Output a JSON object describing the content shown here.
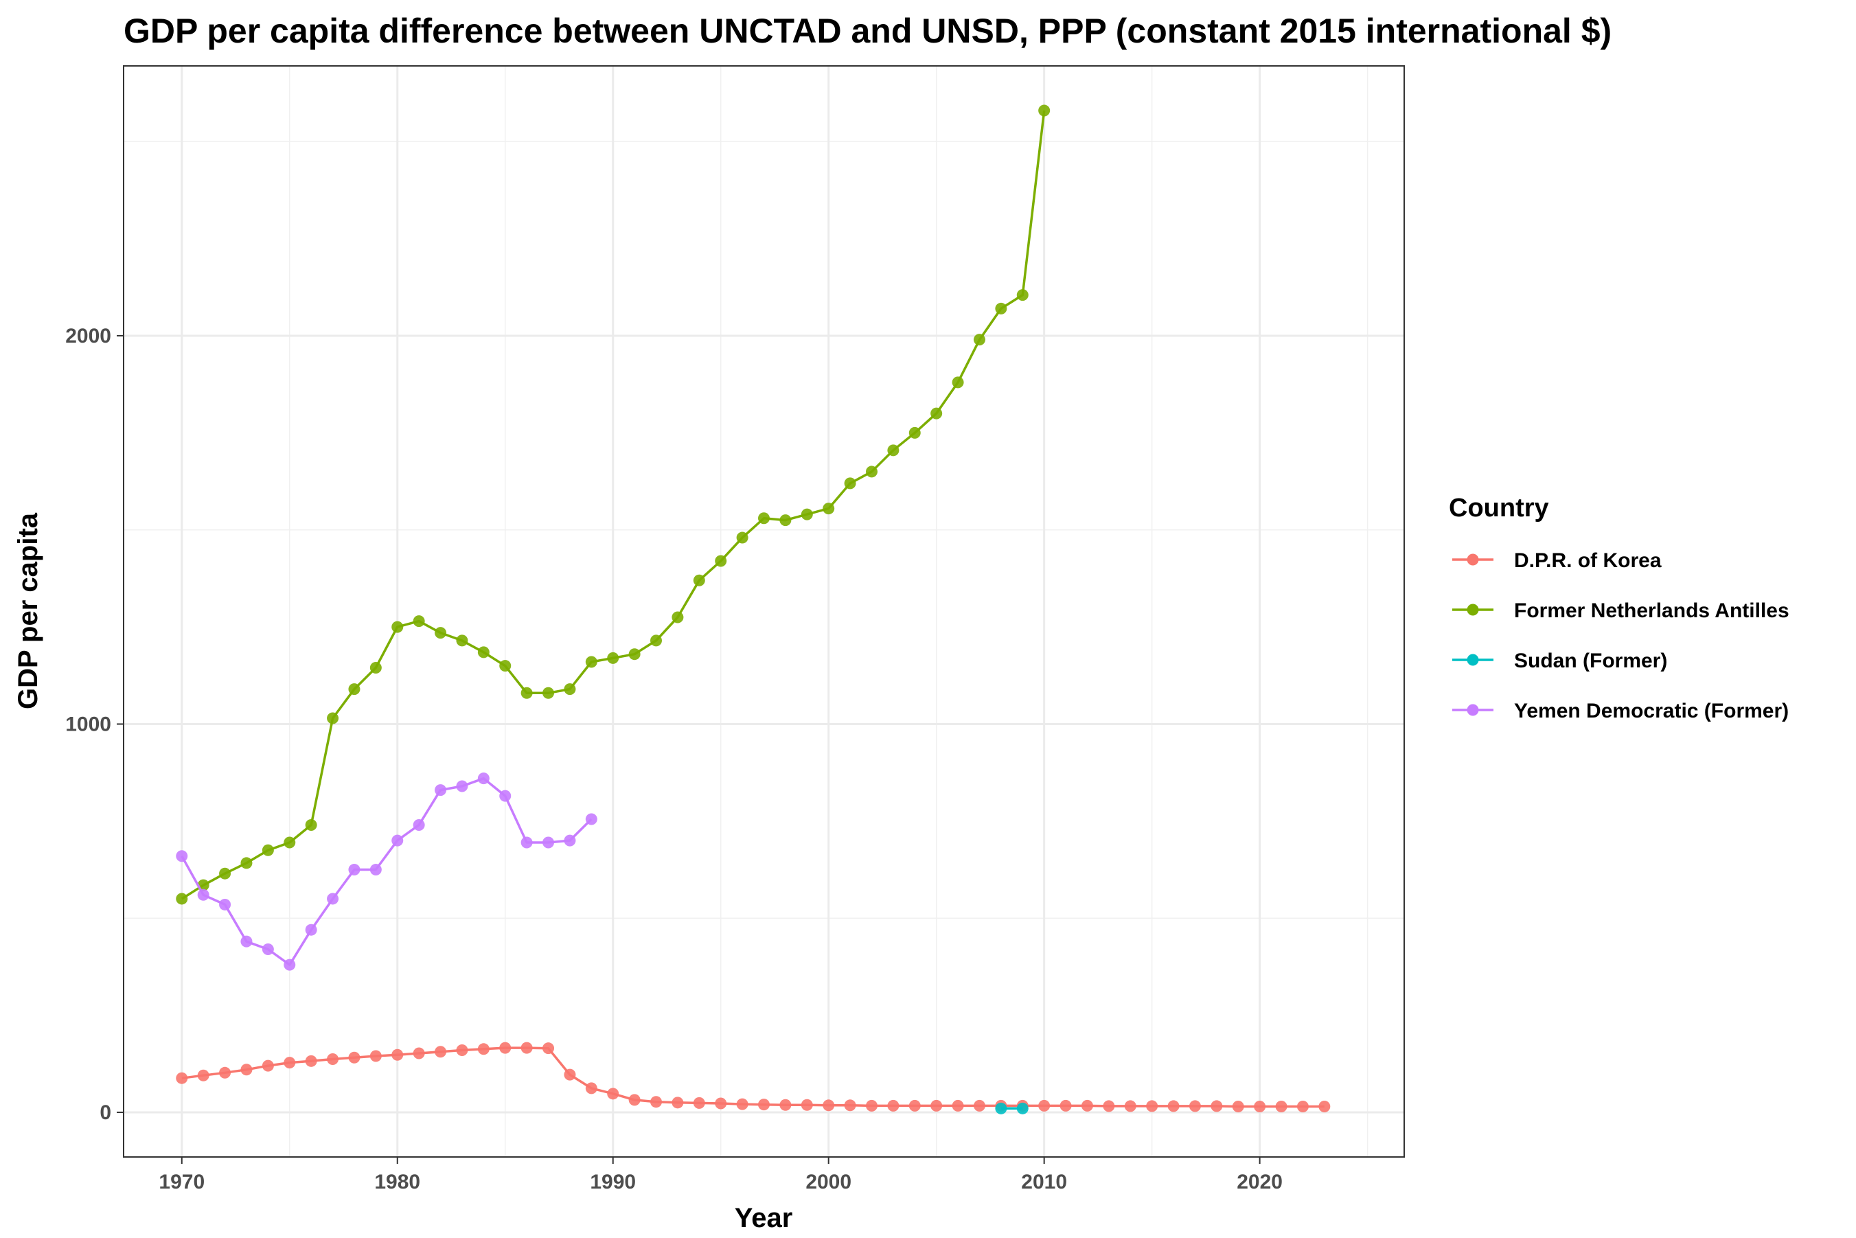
{
  "chart_data": {
    "type": "line",
    "title": "GDP per capita difference between UNCTAD and UNSD, PPP (constant 2015 international $)",
    "xlabel": "Year",
    "ylabel": "GDP per capita",
    "xlim": [
      1967.3,
      2026.7
    ],
    "ylim": [
      -115,
      2695
    ],
    "x_ticks": [
      1970,
      1980,
      1990,
      2000,
      2010,
      2020
    ],
    "y_ticks": [
      0,
      1000,
      2000
    ],
    "grid": true,
    "legend": {
      "title": "Country",
      "position": "right"
    },
    "series": [
      {
        "name": "D.P.R. of Korea",
        "color": "#F8766D",
        "x": [
          1970,
          1971,
          1972,
          1973,
          1974,
          1975,
          1976,
          1977,
          1978,
          1979,
          1980,
          1981,
          1982,
          1983,
          1984,
          1985,
          1986,
          1987,
          1988,
          1989,
          1990,
          1991,
          1992,
          1993,
          1994,
          1995,
          1996,
          1997,
          1998,
          1999,
          2000,
          2001,
          2002,
          2003,
          2004,
          2005,
          2006,
          2007,
          2008,
          2009,
          2010,
          2011,
          2012,
          2013,
          2014,
          2015,
          2016,
          2017,
          2018,
          2019,
          2020,
          2021,
          2022,
          2023
        ],
        "values": [
          88,
          95,
          102,
          110,
          120,
          128,
          132,
          137,
          141,
          145,
          148,
          152,
          156,
          160,
          163,
          166,
          166,
          165,
          97,
          62,
          48,
          32,
          27,
          25,
          24,
          23,
          21,
          20,
          19,
          19,
          18,
          18,
          17,
          17,
          17,
          17,
          17,
          17,
          17,
          17,
          17,
          17,
          17,
          16,
          16,
          16,
          16,
          16,
          16,
          15,
          15,
          15,
          15,
          15
        ]
      },
      {
        "name": "Former Netherlands Antilles",
        "color": "#7CAE00",
        "x": [
          1970,
          1971,
          1972,
          1973,
          1974,
          1975,
          1976,
          1977,
          1978,
          1979,
          1980,
          1981,
          1982,
          1983,
          1984,
          1985,
          1986,
          1987,
          1988,
          1989,
          1990,
          1991,
          1992,
          1993,
          1994,
          1995,
          1996,
          1997,
          1998,
          1999,
          2000,
          2001,
          2002,
          2003,
          2004,
          2005,
          2006,
          2007,
          2008,
          2009,
          2010
        ],
        "values": [
          550,
          585,
          615,
          642,
          675,
          695,
          740,
          1015,
          1090,
          1145,
          1250,
          1265,
          1235,
          1215,
          1185,
          1150,
          1080,
          1080,
          1090,
          1160,
          1170,
          1180,
          1215,
          1275,
          1370,
          1420,
          1480,
          1530,
          1525,
          1540,
          1555,
          1620,
          1650,
          1705,
          1750,
          1800,
          1880,
          1990,
          2070,
          2105,
          2580
        ]
      },
      {
        "name": "Sudan (Former)",
        "color": "#00BFC4",
        "x": [
          2008,
          2009
        ],
        "values": [
          10,
          10
        ]
      },
      {
        "name": "Yemen Democratic (Former)",
        "color": "#C77CFF",
        "x": [
          1970,
          1971,
          1972,
          1973,
          1974,
          1975,
          1976,
          1977,
          1978,
          1979,
          1980,
          1981,
          1982,
          1983,
          1984,
          1985,
          1986,
          1987,
          1988,
          1989
        ],
        "values": [
          660,
          560,
          535,
          440,
          420,
          380,
          470,
          550,
          625,
          625,
          700,
          740,
          830,
          840,
          860,
          815,
          695,
          695,
          700,
          755
        ]
      }
    ]
  }
}
